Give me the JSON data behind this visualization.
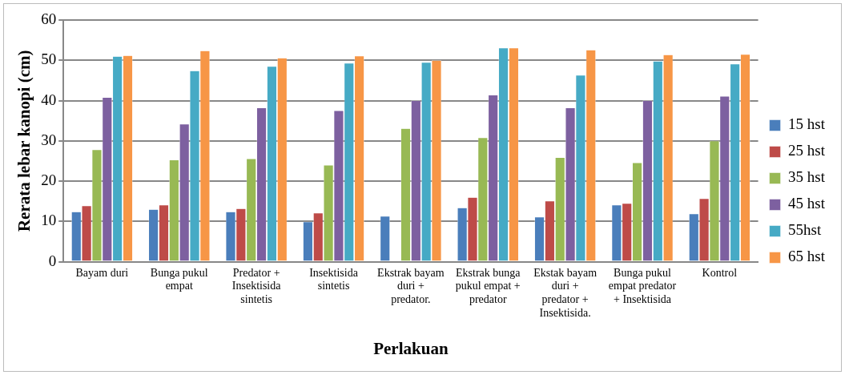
{
  "chart_data": {
    "type": "bar",
    "xlabel": "Perlakuan",
    "ylabel": "Rerata lebar kanopi (cm)",
    "categories": [
      "Bayam duri",
      "Bunga pukul empat",
      "Predator + Insektisida sintetis",
      "Insektisida sintetis",
      "Ekstrak bayam duri + predator.",
      "Ekstrak bunga pukul empat + predator",
      "Ekstak bayam duri + predator + Insektisida.",
      "Bunga pukul empat predator + Insektisida",
      "Kontrol"
    ],
    "series": [
      {
        "name": "15 hst",
        "color": "#4a7ebb",
        "values": [
          12.4,
          13,
          12.4,
          9.9,
          11.3,
          13.4,
          11.1,
          14.1,
          11.9
        ]
      },
      {
        "name": "25 hst",
        "color": "#be4b48",
        "values": [
          13.9,
          14.1,
          13.2,
          12.1,
          null,
          16,
          15.1,
          14.5,
          15.7
        ]
      },
      {
        "name": "35 hst",
        "color": "#98b954",
        "values": [
          27.8,
          25.3,
          25.6,
          24,
          33.1,
          30.8,
          25.9,
          24.6,
          30
        ]
      },
      {
        "name": "45 hst",
        "color": "#7d60a0",
        "values": [
          40.8,
          34.2,
          38.2,
          37.5,
          40,
          41.4,
          38.2,
          40,
          41.1
        ]
      },
      {
        "name": "55hst",
        "color": "#46aac5",
        "values": [
          51,
          47.4,
          48.5,
          49.3,
          49.5,
          53.1,
          46.3,
          49.8,
          49.1
        ]
      },
      {
        "name": "65 hst",
        "color": "#f79646",
        "values": [
          51.2,
          52.4,
          50.6,
          51.1,
          50,
          53.1,
          52.6,
          51.4,
          51.5
        ]
      }
    ],
    "ylim": [
      0,
      60
    ],
    "yticks": [
      0,
      10,
      20,
      30,
      40,
      50,
      60
    ],
    "grid": "y",
    "legend": "right"
  }
}
